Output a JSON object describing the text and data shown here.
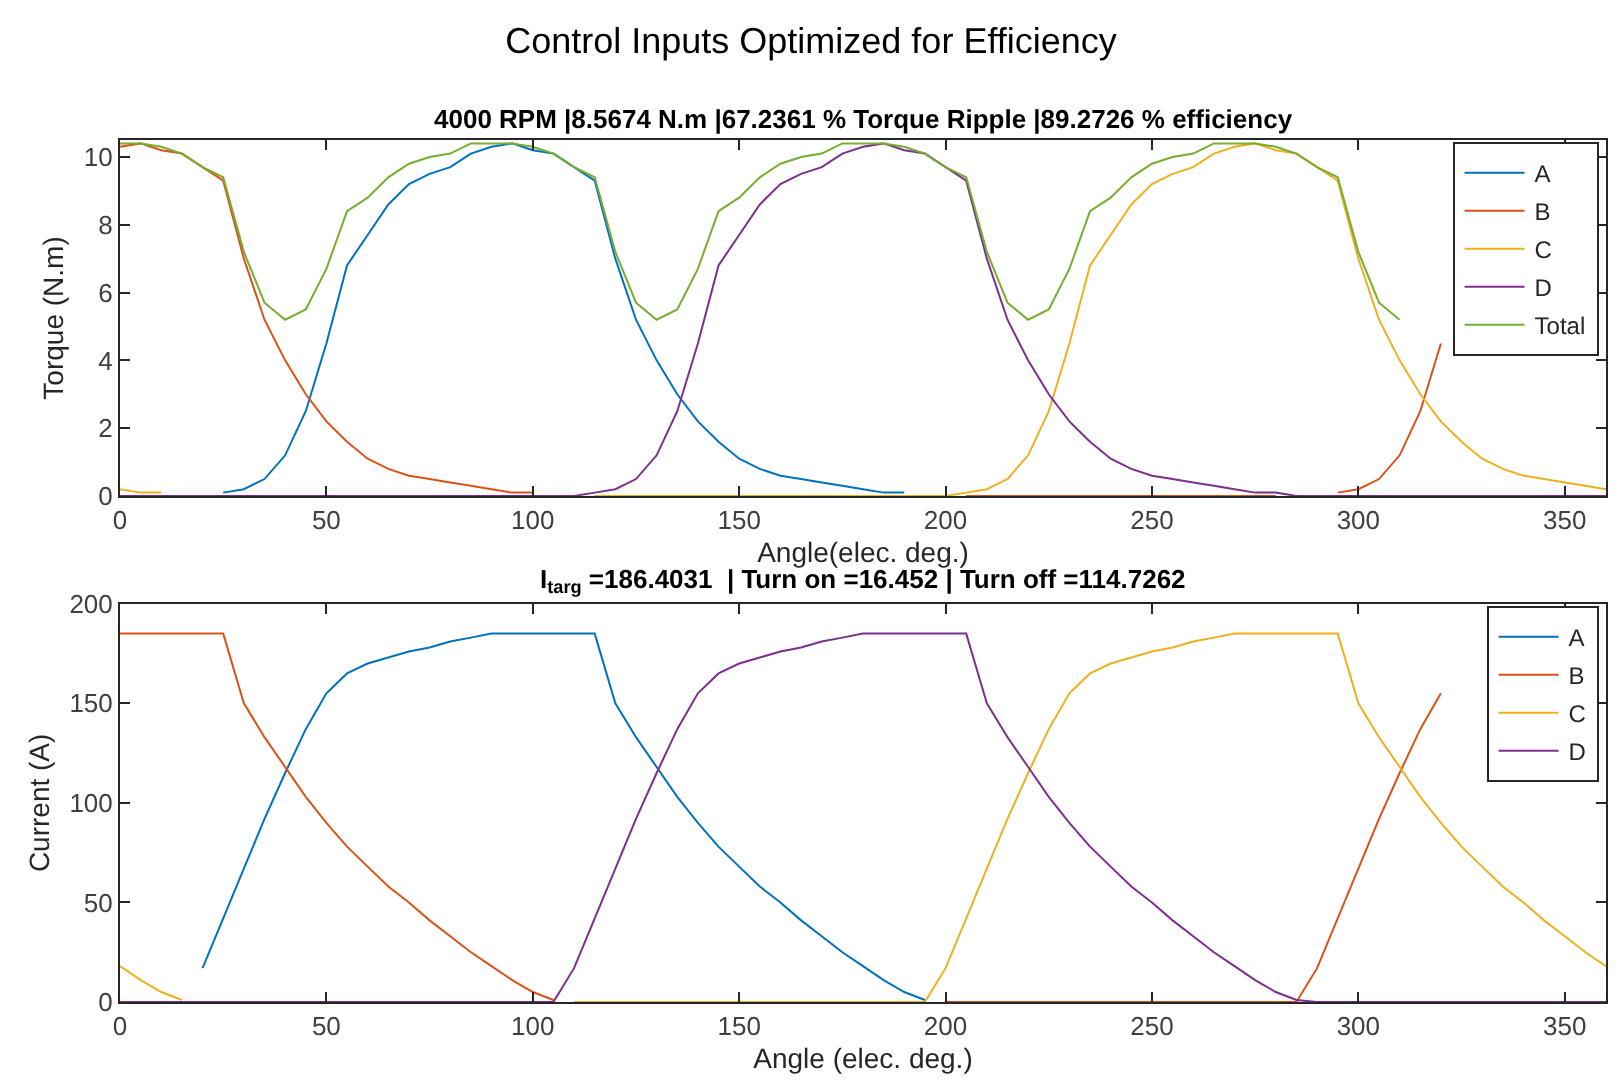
{
  "chart_data": [
    {
      "type": "line",
      "title": "Control Inputs Optimized for Efficiency",
      "subtitle": "4000 RPM |8.5674 N.m |67.2361 % Torque Ripple |89.2726 % efficiency",
      "xlabel": "Angle(elec. deg.)",
      "ylabel": "Torque (N.m)",
      "x": [
        0,
        5,
        10,
        15,
        20,
        25,
        30,
        35,
        40,
        45,
        50,
        55,
        60,
        65,
        70,
        75,
        80,
        85,
        90,
        95,
        100,
        105,
        110,
        115,
        120,
        125,
        130,
        135,
        140,
        145,
        150,
        155,
        160,
        165,
        170,
        175,
        180,
        185,
        190,
        195,
        200,
        205,
        210,
        215,
        220,
        225,
        230,
        235,
        240,
        245,
        250,
        255,
        260,
        265,
        270,
        275,
        280,
        285,
        290,
        295,
        300,
        305,
        310,
        315,
        320,
        325,
        330,
        335,
        340,
        345,
        350,
        355,
        360
      ],
      "xlim": [
        0,
        360
      ],
      "xticks": [
        0,
        50,
        100,
        150,
        200,
        250,
        300,
        350
      ],
      "ylim": [
        0,
        10.5
      ],
      "yticks": [
        0,
        2,
        4,
        6,
        8,
        10
      ],
      "grid": false,
      "legend": "top right",
      "series": [
        {
          "name": "A",
          "color": "#0072bd",
          "values": [
            null,
            null,
            null,
            null,
            null,
            0.1,
            0.2,
            0.5,
            1.2,
            2.5,
            4.5,
            6.8,
            7.7,
            8.6,
            9.2,
            9.5,
            9.7,
            10.1,
            10.3,
            10.4,
            10.2,
            10.1,
            9.7,
            9.3,
            7.0,
            5.2,
            4.0,
            3.0,
            2.2,
            1.6,
            1.1,
            0.8,
            0.6,
            0.5,
            0.4,
            0.3,
            0.2,
            0.1,
            0.1,
            null,
            null,
            null,
            null,
            null,
            null,
            null,
            null,
            null,
            null,
            null,
            null,
            null,
            null,
            null,
            null,
            null,
            null,
            null,
            null,
            null,
            null,
            null,
            null,
            null,
            null,
            null,
            null,
            null,
            null,
            null,
            null,
            null,
            null
          ]
        },
        {
          "name": "B",
          "color": "#d95319",
          "values": [
            10.3,
            10.4,
            10.2,
            10.1,
            9.7,
            9.3,
            7.0,
            5.2,
            4.0,
            3.0,
            2.2,
            1.6,
            1.1,
            0.8,
            0.6,
            0.5,
            0.4,
            0.3,
            0.2,
            0.1,
            0.1,
            null,
            null,
            null,
            null,
            null,
            null,
            null,
            null,
            null,
            null,
            null,
            null,
            null,
            null,
            null,
            null,
            null,
            null,
            null,
            null,
            0,
            0,
            0,
            0,
            0,
            0,
            0,
            0,
            0,
            0,
            0,
            0,
            0,
            0,
            0,
            0,
            null,
            null,
            0.1,
            0.2,
            0.5,
            1.2,
            2.5,
            4.5,
            null,
            null,
            null,
            null,
            null,
            null,
            null,
            null
          ]
        },
        {
          "name": "C",
          "color": "#edb120",
          "values": [
            0.2,
            0.1,
            0.1,
            null,
            null,
            null,
            null,
            null,
            null,
            null,
            null,
            null,
            null,
            null,
            null,
            null,
            null,
            null,
            null,
            null,
            null,
            null,
            null,
            0,
            0,
            0,
            0,
            0,
            0,
            0,
            0,
            0,
            0,
            0,
            0,
            0,
            0,
            0,
            0,
            0,
            0,
            0.1,
            0.2,
            0.5,
            1.2,
            2.5,
            4.5,
            6.8,
            7.7,
            8.6,
            9.2,
            9.5,
            9.7,
            10.1,
            10.3,
            10.4,
            10.2,
            10.1,
            9.7,
            9.3,
            7.0,
            5.2,
            4.0,
            3.0,
            2.2,
            1.6,
            1.1,
            0.8,
            0.6,
            0.5,
            0.4,
            0.3,
            0.2
          ]
        },
        {
          "name": "D",
          "color": "#7e2f8e",
          "values": [
            0,
            0,
            0,
            0,
            0,
            0,
            0,
            0,
            0,
            0,
            0,
            0,
            0,
            0,
            0,
            0,
            0,
            0,
            0,
            0,
            0,
            0,
            0,
            0.1,
            0.2,
            0.5,
            1.2,
            2.5,
            4.5,
            6.8,
            7.7,
            8.6,
            9.2,
            9.5,
            9.7,
            10.1,
            10.3,
            10.4,
            10.2,
            10.1,
            9.7,
            9.3,
            7.0,
            5.2,
            4.0,
            3.0,
            2.2,
            1.6,
            1.1,
            0.8,
            0.6,
            0.5,
            0.4,
            0.3,
            0.2,
            0.1,
            0.1,
            0,
            0,
            0,
            0,
            0,
            0,
            0,
            0,
            0,
            0,
            0,
            0,
            0,
            0,
            0,
            0
          ]
        },
        {
          "name": "Total",
          "color": "#77ac30",
          "values": [
            10.4,
            10.4,
            10.3,
            10.1,
            9.7,
            9.4,
            7.2,
            5.7,
            5.2,
            5.5,
            6.7,
            8.4,
            8.8,
            9.4,
            9.8,
            10.0,
            10.1,
            10.4,
            10.4,
            10.4,
            10.3,
            10.1,
            9.7,
            9.4,
            7.2,
            5.7,
            5.2,
            5.5,
            6.7,
            8.4,
            8.8,
            9.4,
            9.8,
            10.0,
            10.1,
            10.4,
            10.4,
            10.4,
            10.3,
            10.1,
            9.7,
            9.4,
            7.2,
            5.7,
            5.2,
            5.5,
            6.7,
            8.4,
            8.8,
            9.4,
            9.8,
            10.0,
            10.1,
            10.4,
            10.4,
            10.4,
            10.3,
            10.1,
            9.7,
            9.4,
            7.2,
            5.7,
            5.2,
            null,
            null,
            null,
            null,
            null,
            null,
            null,
            null,
            null,
            null
          ]
        }
      ]
    },
    {
      "type": "line",
      "title": "I$_{targ}$ =186.4031  | Turn on =16.452 | Turn off =114.7262",
      "xlabel": "Angle (elec. deg.)",
      "ylabel": "Current (A)",
      "x": [
        0,
        5,
        10,
        15,
        20,
        25,
        30,
        35,
        40,
        45,
        50,
        55,
        60,
        65,
        70,
        75,
        80,
        85,
        90,
        95,
        100,
        105,
        110,
        115,
        120,
        125,
        130,
        135,
        140,
        145,
        150,
        155,
        160,
        165,
        170,
        175,
        180,
        185,
        190,
        195,
        200,
        205,
        210,
        215,
        220,
        225,
        230,
        235,
        240,
        245,
        250,
        255,
        260,
        265,
        270,
        275,
        280,
        285,
        290,
        295,
        300,
        305,
        310,
        315,
        320,
        325,
        330,
        335,
        340,
        345,
        350,
        355,
        360
      ],
      "xlim": [
        0,
        360
      ],
      "xticks": [
        0,
        50,
        100,
        150,
        200,
        250,
        300,
        350
      ],
      "ylim": [
        0,
        200
      ],
      "yticks": [
        0,
        50,
        100,
        150,
        200
      ],
      "grid": false,
      "legend": "top right",
      "series": [
        {
          "name": "A",
          "color": "#0072bd",
          "values": [
            null,
            null,
            null,
            null,
            17,
            42,
            67,
            92,
            115,
            137,
            155,
            165,
            170,
            173,
            176,
            178,
            181,
            183,
            185,
            185,
            185,
            185,
            185,
            185,
            150,
            133,
            118,
            103,
            90,
            78,
            68,
            58,
            50,
            41,
            33,
            25,
            18,
            11,
            5,
            1,
            null,
            null,
            null,
            null,
            null,
            null,
            null,
            null,
            null,
            null,
            null,
            null,
            null,
            null,
            null,
            null,
            null,
            null,
            null,
            null,
            null,
            null,
            null,
            null,
            null,
            null,
            null,
            null,
            null,
            null,
            null,
            null,
            null
          ]
        },
        {
          "name": "B",
          "color": "#d95319",
          "values": [
            185,
            185,
            185,
            185,
            185,
            185,
            150,
            133,
            118,
            103,
            90,
            78,
            68,
            58,
            50,
            41,
            33,
            25,
            18,
            11,
            5,
            1,
            null,
            null,
            null,
            null,
            null,
            null,
            null,
            null,
            null,
            null,
            null,
            null,
            null,
            null,
            null,
            null,
            null,
            null,
            0,
            0,
            0,
            0,
            0,
            0,
            0,
            0,
            0,
            0,
            0,
            0,
            0,
            0,
            0,
            0,
            0,
            0,
            17,
            42,
            67,
            92,
            115,
            137,
            155,
            null,
            null,
            null,
            null,
            null,
            null,
            null,
            null
          ]
        },
        {
          "name": "C",
          "color": "#edb120",
          "values": [
            18,
            11,
            5,
            1,
            null,
            null,
            null,
            null,
            null,
            null,
            null,
            null,
            null,
            null,
            null,
            null,
            null,
            null,
            null,
            null,
            null,
            null,
            0,
            0,
            0,
            0,
            0,
            0,
            0,
            0,
            0,
            0,
            0,
            0,
            0,
            0,
            0,
            0,
            0,
            0,
            17,
            42,
            67,
            92,
            115,
            137,
            155,
            165,
            170,
            173,
            176,
            178,
            181,
            183,
            185,
            185,
            185,
            185,
            185,
            185,
            150,
            133,
            118,
            103,
            90,
            78,
            68,
            58,
            50,
            41,
            33,
            25,
            18
          ]
        },
        {
          "name": "D",
          "color": "#7e2f8e",
          "values": [
            0,
            0,
            0,
            0,
            0,
            0,
            0,
            0,
            0,
            0,
            0,
            0,
            0,
            0,
            0,
            0,
            0,
            0,
            0,
            0,
            0,
            0,
            17,
            42,
            67,
            92,
            115,
            137,
            155,
            165,
            170,
            173,
            176,
            178,
            181,
            183,
            185,
            185,
            185,
            185,
            185,
            185,
            150,
            133,
            118,
            103,
            90,
            78,
            68,
            58,
            50,
            41,
            33,
            25,
            18,
            11,
            5,
            1,
            0,
            0,
            0,
            0,
            0,
            0,
            0,
            0,
            0,
            0,
            0,
            0,
            0,
            0,
            0
          ]
        }
      ]
    }
  ]
}
